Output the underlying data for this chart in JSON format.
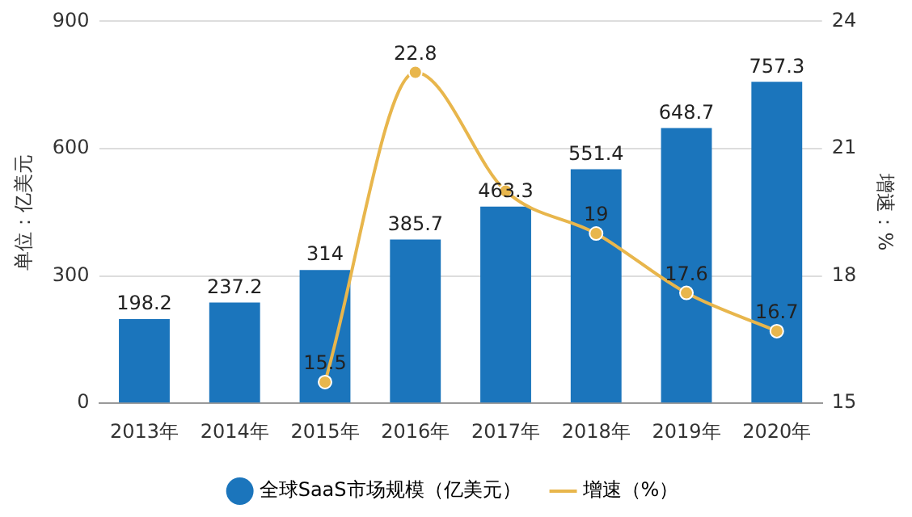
{
  "chart_data": {
    "type": "bar",
    "categories": [
      "2013年",
      "2014年",
      "2015年",
      "2016年",
      "2017年",
      "2018年",
      "2019年",
      "2020年"
    ],
    "ylabel": "单位：亿美元",
    "y2label": "增速：%",
    "series": [
      {
        "name": "全球SaaS市场规模（亿美元）",
        "color": "#1b75bc",
        "values": [
          198.2,
          237.2,
          314,
          385.7,
          463.3,
          551.4,
          648.7,
          757.3
        ]
      },
      {
        "name": "增速（%）",
        "type": "line",
        "axis": "y2",
        "color": "#e8b64c",
        "marker": "circle",
        "values": [
          null,
          null,
          15.5,
          22.8,
          20.0,
          19,
          17.6,
          16.7
        ],
        "value_labels": [
          null,
          null,
          "15.5",
          "22.8",
          null,
          "19",
          "17.6",
          "16.7"
        ]
      }
    ],
    "data_labels": true,
    "ylim": [
      0,
      900
    ],
    "yticks": [
      0,
      300,
      600,
      900
    ],
    "y2lim": [
      15,
      24
    ],
    "y2ticks": [
      15,
      18,
      21,
      24
    ],
    "grid": "y",
    "legend": "bottom"
  }
}
